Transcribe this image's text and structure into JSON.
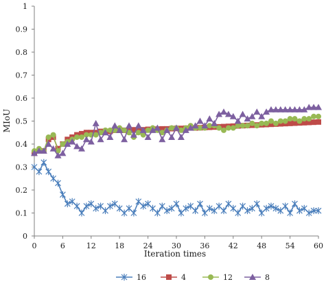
{
  "chart_data": {
    "type": "line",
    "xlabel": "Iteration times",
    "ylabel": "MIoU",
    "xlim": [
      0,
      60
    ],
    "ylim": [
      0,
      1
    ],
    "x_ticks": [
      "0",
      "6",
      "12",
      "18",
      "24",
      "30",
      "36",
      "42",
      "48",
      "54",
      "60"
    ],
    "y_ticks": [
      "0",
      "0.1",
      "0.2",
      "0.3",
      "0.4",
      "0.5",
      "0.6",
      "0.7",
      "0.8",
      "0.9",
      "1"
    ],
    "grid": false,
    "legend_position": "bottom",
    "x": [
      0,
      1,
      2,
      3,
      4,
      5,
      6,
      7,
      8,
      9,
      10,
      11,
      12,
      13,
      14,
      15,
      16,
      17,
      18,
      19,
      20,
      21,
      22,
      23,
      24,
      25,
      26,
      27,
      28,
      29,
      30,
      31,
      32,
      33,
      34,
      35,
      36,
      37,
      38,
      39,
      40,
      41,
      42,
      43,
      44,
      45,
      46,
      47,
      48,
      49,
      50,
      51,
      52,
      53,
      54,
      55,
      56,
      57,
      58,
      59,
      60
    ],
    "series": [
      {
        "name": "16",
        "color": "#4a7ebb",
        "marker": "star",
        "values": [
          0.3,
          0.28,
          0.32,
          0.28,
          0.25,
          0.23,
          0.18,
          0.14,
          0.15,
          0.13,
          0.1,
          0.13,
          0.14,
          0.12,
          0.13,
          0.11,
          0.13,
          0.14,
          0.12,
          0.1,
          0.12,
          0.1,
          0.15,
          0.13,
          0.14,
          0.12,
          0.1,
          0.13,
          0.11,
          0.12,
          0.14,
          0.1,
          0.12,
          0.13,
          0.11,
          0.14,
          0.1,
          0.12,
          0.11,
          0.13,
          0.11,
          0.14,
          0.12,
          0.1,
          0.13,
          0.11,
          0.12,
          0.14,
          0.1,
          0.12,
          0.13,
          0.12,
          0.11,
          0.13,
          0.1,
          0.14,
          0.11,
          0.12,
          0.1,
          0.11,
          0.11
        ]
      },
      {
        "name": "4",
        "color": "#be4b48",
        "marker": "square",
        "values": [
          0.36,
          0.37,
          0.37,
          0.42,
          0.43,
          0.38,
          0.4,
          0.42,
          0.43,
          0.44,
          0.445,
          0.45,
          0.45,
          0.45,
          0.455,
          0.455,
          0.455,
          0.46,
          0.46,
          0.46,
          0.46,
          0.462,
          0.462,
          0.462,
          0.464,
          0.464,
          0.465,
          0.466,
          0.466,
          0.467,
          0.468,
          0.468,
          0.469,
          0.47,
          0.47,
          0.471,
          0.472,
          0.473,
          0.474,
          0.475,
          0.476,
          0.477,
          0.478,
          0.479,
          0.48,
          0.481,
          0.482,
          0.483,
          0.484,
          0.485,
          0.486,
          0.487,
          0.488,
          0.489,
          0.49,
          0.491,
          0.492,
          0.493,
          0.494,
          0.495,
          0.496
        ]
      },
      {
        "name": "12",
        "color": "#98b954",
        "marker": "circle",
        "values": [
          0.37,
          0.38,
          0.37,
          0.43,
          0.44,
          0.37,
          0.4,
          0.41,
          0.42,
          0.43,
          0.43,
          0.44,
          0.44,
          0.44,
          0.45,
          0.46,
          0.46,
          0.46,
          0.47,
          0.46,
          0.45,
          0.43,
          0.45,
          0.44,
          0.46,
          0.47,
          0.46,
          0.45,
          0.46,
          0.47,
          0.47,
          0.46,
          0.47,
          0.48,
          0.47,
          0.47,
          0.47,
          0.48,
          0.48,
          0.47,
          0.46,
          0.47,
          0.47,
          0.48,
          0.48,
          0.48,
          0.49,
          0.48,
          0.49,
          0.49,
          0.5,
          0.49,
          0.5,
          0.5,
          0.51,
          0.51,
          0.5,
          0.51,
          0.51,
          0.52,
          0.52
        ]
      },
      {
        "name": "8",
        "color": "#7d60a0",
        "marker": "triangle",
        "values": [
          0.36,
          0.37,
          0.37,
          0.4,
          0.38,
          0.35,
          0.36,
          0.4,
          0.41,
          0.39,
          0.38,
          0.42,
          0.41,
          0.49,
          0.42,
          0.45,
          0.43,
          0.48,
          0.46,
          0.42,
          0.48,
          0.44,
          0.48,
          0.46,
          0.43,
          0.46,
          0.47,
          0.42,
          0.46,
          0.43,
          0.47,
          0.43,
          0.46,
          0.47,
          0.48,
          0.5,
          0.48,
          0.51,
          0.49,
          0.53,
          0.54,
          0.53,
          0.52,
          0.5,
          0.53,
          0.51,
          0.52,
          0.54,
          0.52,
          0.54,
          0.55,
          0.55,
          0.55,
          0.55,
          0.55,
          0.55,
          0.55,
          0.55,
          0.56,
          0.56,
          0.56
        ]
      }
    ]
  }
}
